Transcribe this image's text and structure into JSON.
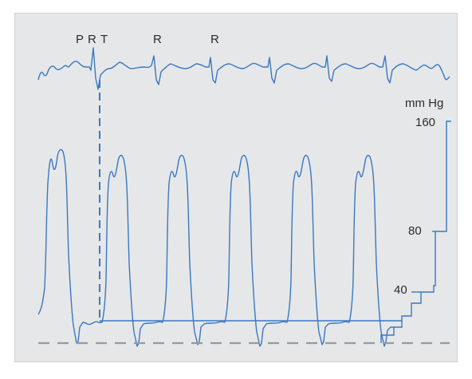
{
  "ecg_labels": [
    "P",
    "R",
    "T",
    "R",
    "R"
  ],
  "pressure_axis": {
    "unit": "mm Hg",
    "ticks": [
      "160",
      "80",
      "40"
    ]
  },
  "colors": {
    "trace": "#3a78c3",
    "baseline": "#9a9a9a",
    "background": "#e6e7e8"
  }
}
